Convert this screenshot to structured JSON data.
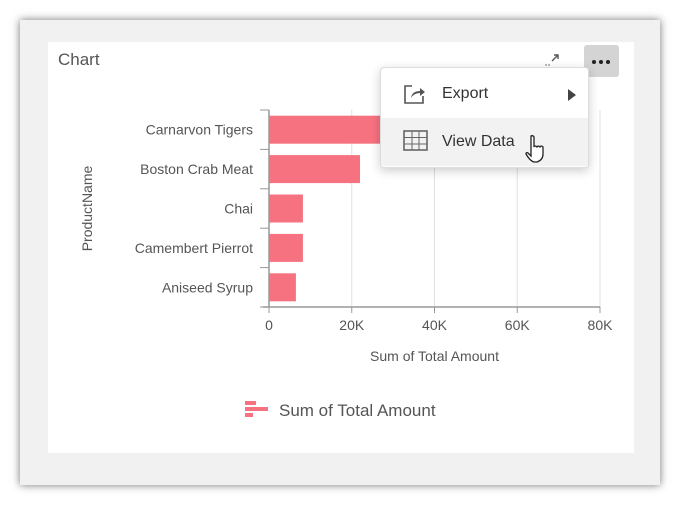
{
  "card": {
    "title": "Chart",
    "expand_icon": "expand-icon",
    "more_icon": "more-horizontal-icon"
  },
  "menu": {
    "items": [
      {
        "label": "Export",
        "icon": "export-share-icon",
        "has_submenu": true
      },
      {
        "label": "View Data",
        "icon": "table-grid-icon",
        "hovered": true
      }
    ]
  },
  "chart_data": {
    "type": "bar",
    "orientation": "horizontal",
    "categories": [
      "Carnarvon Tigers",
      "Boston Crab Meat",
      "Chai",
      "Camembert Pierrot",
      "Aniseed Syrup"
    ],
    "series": [
      {
        "name": "Sum of Total Amount",
        "values": [
          29000,
          22000,
          8200,
          8200,
          6500
        ],
        "color": "#f67280"
      }
    ],
    "xlabel": "Sum of Total Amount",
    "ylabel": "ProductName",
    "xlim": [
      0,
      80000
    ],
    "xticks": [
      "0",
      "20K",
      "40K",
      "60K",
      "80K"
    ],
    "grid": true,
    "legend": "bottom"
  }
}
